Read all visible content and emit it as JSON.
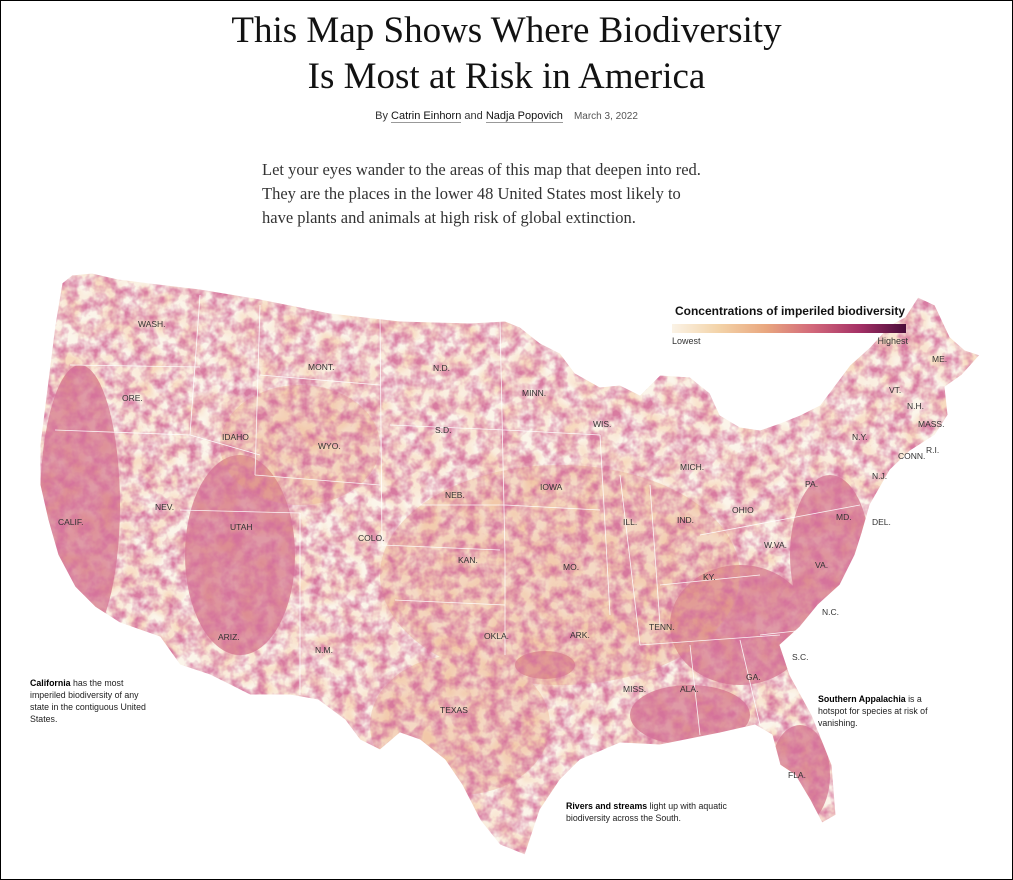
{
  "headline": {
    "line1": "This Map Shows Where Biodiversity",
    "line2": "Is Most at Risk in America"
  },
  "byline": {
    "prefix": "By",
    "author1": "Catrin Einhorn",
    "joiner": "and",
    "author2": "Nadja Popovich",
    "date": "March 3, 2022"
  },
  "lede": {
    "line1": "Let your eyes wander to the areas of this map that deepen into red.",
    "line2": "They are the places in the lower 48 United States most likely to",
    "line3": "have plants and animals at high risk of global extinction."
  },
  "legend": {
    "title": "Concentrations of imperiled biodiversity",
    "low": "Lowest",
    "high": "Highest",
    "colors": [
      "#fbf3e6",
      "#f3d3a8",
      "#e9a77f",
      "#d2687a",
      "#a53166",
      "#4a0c3a"
    ]
  },
  "notes": {
    "california": {
      "bold": "California",
      "text1": " has the most",
      "text2": "imperiled biodiversity of any",
      "text3": "state in the contiguous United",
      "text4": "States."
    },
    "appalachia": {
      "bold": "Southern Appalachia",
      "text1": " is a",
      "text2": "hotspot for species at risk of",
      "text3": "vanishing."
    },
    "rivers": {
      "bold": "Rivers and streams",
      "text1": " light up with aquatic",
      "text2": "biodiversity across the South."
    }
  },
  "state_labels": [
    {
      "id": "wash",
      "text": "WASH."
    },
    {
      "id": "ore",
      "text": "ORE."
    },
    {
      "id": "calif",
      "text": "CALIF."
    },
    {
      "id": "idaho",
      "text": "IDAHO"
    },
    {
      "id": "nev",
      "text": "NEV."
    },
    {
      "id": "mont",
      "text": "MONT."
    },
    {
      "id": "wyo",
      "text": "WYO."
    },
    {
      "id": "utah",
      "text": "UTAH"
    },
    {
      "id": "ariz",
      "text": "ARIZ."
    },
    {
      "id": "colo",
      "text": "COLO."
    },
    {
      "id": "nm",
      "text": "N.M."
    },
    {
      "id": "nd",
      "text": "N.D."
    },
    {
      "id": "sd",
      "text": "S.D."
    },
    {
      "id": "neb",
      "text": "NEB."
    },
    {
      "id": "kan",
      "text": "KAN."
    },
    {
      "id": "okla",
      "text": "OKLA."
    },
    {
      "id": "texas",
      "text": "TEXAS"
    },
    {
      "id": "minn",
      "text": "MINN."
    },
    {
      "id": "iowa",
      "text": "IOWA"
    },
    {
      "id": "mo",
      "text": "MO."
    },
    {
      "id": "ark",
      "text": "ARK."
    },
    {
      "id": "wis",
      "text": "WIS."
    },
    {
      "id": "ill",
      "text": "ILL."
    },
    {
      "id": "mich",
      "text": "MICH."
    },
    {
      "id": "ind",
      "text": "IND."
    },
    {
      "id": "ohio",
      "text": "OHIO"
    },
    {
      "id": "ky",
      "text": "KY."
    },
    {
      "id": "tenn",
      "text": "TENN."
    },
    {
      "id": "miss",
      "text": "MISS."
    },
    {
      "id": "ala",
      "text": "ALA."
    },
    {
      "id": "ga",
      "text": "GA."
    },
    {
      "id": "fla",
      "text": "FLA."
    },
    {
      "id": "sc",
      "text": "S.C."
    },
    {
      "id": "nc",
      "text": "N.C."
    },
    {
      "id": "va",
      "text": "VA."
    },
    {
      "id": "wva",
      "text": "W.VA."
    },
    {
      "id": "pa",
      "text": "PA."
    },
    {
      "id": "md",
      "text": "MD."
    },
    {
      "id": "del",
      "text": "DEL."
    },
    {
      "id": "nj",
      "text": "N.J."
    },
    {
      "id": "ny",
      "text": "N.Y."
    },
    {
      "id": "conn",
      "text": "CONN."
    },
    {
      "id": "ri",
      "text": "R.I."
    },
    {
      "id": "mass",
      "text": "MASS."
    },
    {
      "id": "vt",
      "text": "VT."
    },
    {
      "id": "nh",
      "text": "N.H."
    },
    {
      "id": "me",
      "text": "ME."
    }
  ]
}
